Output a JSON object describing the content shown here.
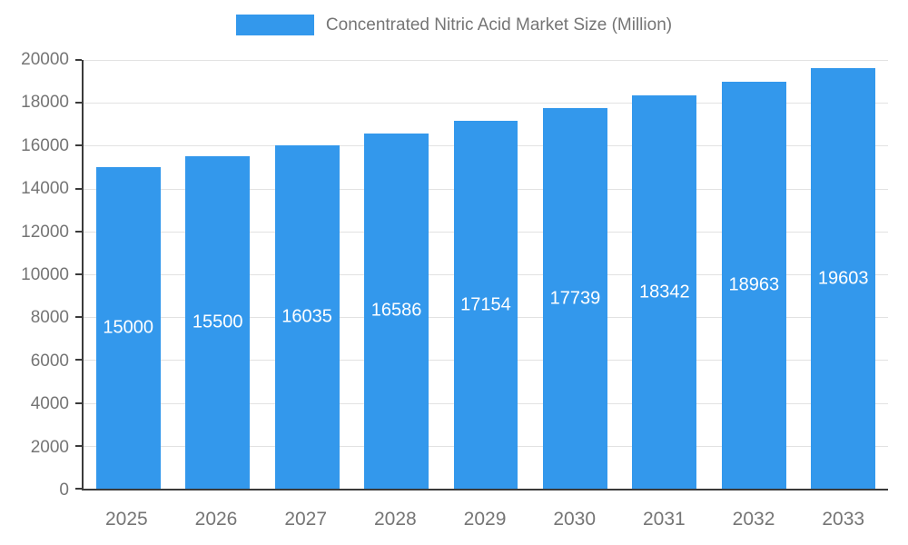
{
  "chart_data": {
    "type": "bar",
    "title": "Concentrated Nitric Acid Market Size (Million)",
    "categories": [
      "2025",
      "2026",
      "2027",
      "2028",
      "2029",
      "2030",
      "2031",
      "2032",
      "2033"
    ],
    "values": [
      15000,
      15500,
      16035,
      16586,
      17154,
      17739,
      18342,
      18963,
      19603
    ],
    "xlabel": "",
    "ylabel": "",
    "ylim": [
      0,
      20000
    ],
    "y_ticks": [
      0,
      2000,
      4000,
      6000,
      8000,
      10000,
      12000,
      14000,
      16000,
      18000,
      20000
    ],
    "grid": true,
    "legend_position": "top",
    "value_labels_inside_bars": true,
    "colors": {
      "bar": "#3398EC",
      "value_label": "#ffffff",
      "axis_text": "#757575",
      "axis_line": "#3b3b3b",
      "gridline": "#e2e2e2",
      "background": "#ffffff"
    }
  }
}
